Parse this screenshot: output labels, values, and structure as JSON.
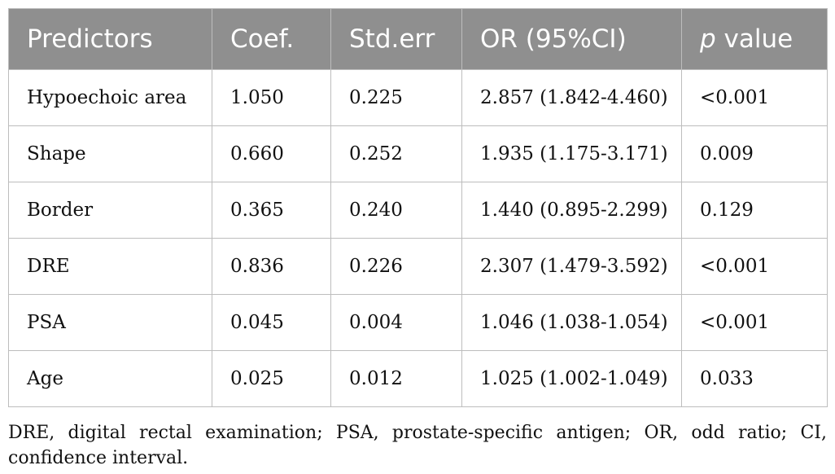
{
  "table": {
    "headers": {
      "predictors": "Predictors",
      "coef": "Coef.",
      "stderr": "Std.err",
      "or": "OR (95%CI)",
      "p_italic": "p",
      "p_rest": " value"
    },
    "rows": [
      {
        "predictor": "Hypoechoic area",
        "coef": "1.050",
        "stderr": "0.225",
        "or": "2.857 (1.842-4.460)",
        "p": "<0.001"
      },
      {
        "predictor": "Shape",
        "coef": "0.660",
        "stderr": "0.252",
        "or": "1.935 (1.175-3.171)",
        "p": "0.009"
      },
      {
        "predictor": "Border",
        "coef": "0.365",
        "stderr": "0.240",
        "or": "1.440 (0.895-2.299)",
        "p": "0.129"
      },
      {
        "predictor": "DRE",
        "coef": "0.836",
        "stderr": "0.226",
        "or": "2.307 (1.479-3.592)",
        "p": "<0.001"
      },
      {
        "predictor": "PSA",
        "coef": "0.045",
        "stderr": "0.004",
        "or": "1.046 (1.038-1.054)",
        "p": "<0.001"
      },
      {
        "predictor": "Age",
        "coef": "0.025",
        "stderr": "0.012",
        "or": "1.025 (1.002-1.049)",
        "p": "0.033"
      }
    ]
  },
  "footnote": "DRE, digital rectal examination; PSA, prostate-specific antigen; OR, odd ratio; CI, confidence interval.",
  "colors": {
    "header_bg": "#8f8f8f",
    "header_text": "#ffffff",
    "grid": "#bdbdbd"
  }
}
